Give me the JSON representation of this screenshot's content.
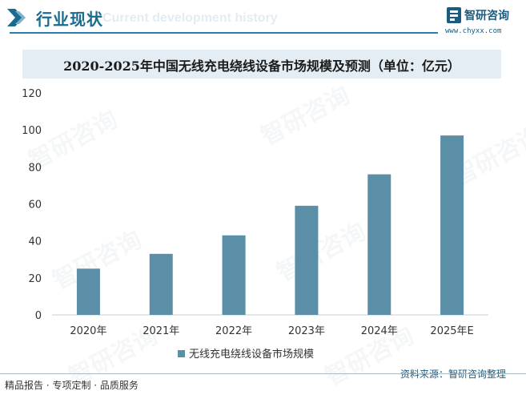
{
  "header": {
    "title": "行业现状",
    "ghost_text": "Current development history",
    "logo_text": "智研咨询",
    "logo_url": "www.chyxx.com"
  },
  "title": "2020-2025年中国无线充电绕线设备市场规模及预测（单位：亿元）",
  "chart_data": {
    "type": "bar",
    "categories": [
      "2020年",
      "2021年",
      "2022年",
      "2023年",
      "2024年",
      "2025年E"
    ],
    "series": [
      {
        "name": "无线充电绕线设备市场规模",
        "values": [
          25,
          33,
          43,
          59,
          76,
          97
        ]
      }
    ],
    "ylim": [
      0,
      120
    ],
    "yticks": [
      0,
      20,
      40,
      60,
      80,
      100,
      120
    ],
    "xlabel": "",
    "ylabel": "",
    "grid": false,
    "legend": "bottom",
    "color": "#5b8fa8"
  },
  "watermark": "智研咨询",
  "footer": {
    "left": "精品报告 · 专项定制 · 品质服务",
    "source": "资料来源：智研咨询整理"
  }
}
